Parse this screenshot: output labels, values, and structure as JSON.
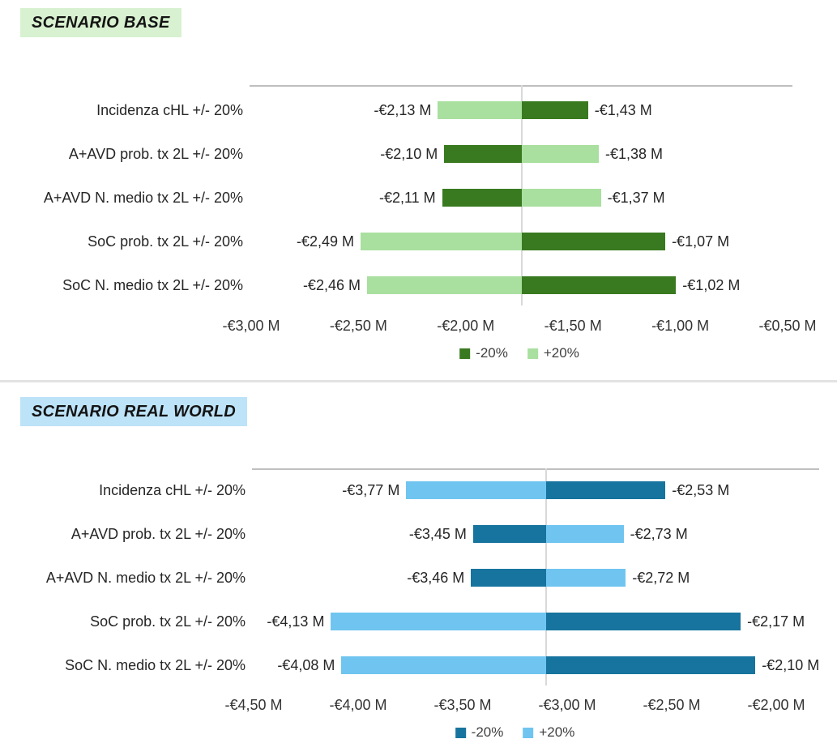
{
  "divider_color": "#E3E3E3",
  "plot_border_color": "#BFBFBF",
  "baseline_line_color": "#D9D9D9",
  "chart_data": [
    {
      "type": "bar",
      "orientation": "horizontal-tornado",
      "title": "SCENARIO BASE",
      "title_bg": "#D8F1D0",
      "baseline": -1.74,
      "xlim": [
        -3.0,
        -0.5
      ],
      "axis": {
        "min": -3.0,
        "max": -0.5,
        "tick_labels": [
          "-€3,00 M",
          "-€2,50 M",
          "-€2,00 M",
          "-€1,50 M",
          "-€1,00 M",
          "-€0,50 M"
        ]
      },
      "series_colors": {
        "minus20": "#397A20",
        "plus20": "#A9DF9F"
      },
      "legend": [
        {
          "key": "minus20",
          "label": "-20%"
        },
        {
          "key": "plus20",
          "label": "+20%"
        }
      ],
      "categories": [
        "Incidenza cHL +/- 20%",
        "A+AVD prob. tx 2L +/- 20%",
        "A+AVD N. medio tx 2L +/- 20%",
        "SoC prob.  tx 2L +/- 20%",
        "SoC N. medio tx 2L +/- 20%"
      ],
      "rows": [
        {
          "category": "Incidenza cHL +/- 20%",
          "minus20": {
            "value": -1.43,
            "label": "-€1,43 M"
          },
          "plus20": {
            "value": -2.13,
            "label": "-€2,13 M"
          }
        },
        {
          "category": "A+AVD prob. tx 2L +/- 20%",
          "minus20": {
            "value": -2.1,
            "label": "-€2,10 M"
          },
          "plus20": {
            "value": -1.38,
            "label": "-€1,38 M"
          }
        },
        {
          "category": "A+AVD N. medio tx 2L +/- 20%",
          "minus20": {
            "value": -2.11,
            "label": "-€2,11 M"
          },
          "plus20": {
            "value": -1.37,
            "label": "-€1,37 M"
          }
        },
        {
          "category": "SoC prob.  tx 2L +/- 20%",
          "minus20": {
            "value": -1.07,
            "label": "-€1,07 M"
          },
          "plus20": {
            "value": -2.49,
            "label": "-€2,49 M"
          }
        },
        {
          "category": "SoC N. medio tx 2L +/- 20%",
          "minus20": {
            "value": -1.02,
            "label": "-€1,02 M"
          },
          "plus20": {
            "value": -2.46,
            "label": "-€2,46 M"
          }
        }
      ]
    },
    {
      "type": "bar",
      "orientation": "horizontal-tornado",
      "title": "SCENARIO REAL WORLD",
      "title_bg": "#BDE3F8",
      "baseline": -3.1,
      "xlim": [
        -4.5,
        -2.0
      ],
      "axis": {
        "min": -4.5,
        "max": -2.0,
        "tick_labels": [
          "-€4,50 M",
          "-€4,00 M",
          "-€3,50 M",
          "-€3,00 M",
          "-€2,50 M",
          "-€2,00 M"
        ]
      },
      "series_colors": {
        "minus20": "#17749E",
        "plus20": "#6FC5F0"
      },
      "legend": [
        {
          "key": "minus20",
          "label": "-20%"
        },
        {
          "key": "plus20",
          "label": "+20%"
        }
      ],
      "categories": [
        "Incidenza cHL +/- 20%",
        "A+AVD prob. tx 2L +/- 20%",
        "A+AVD N. medio tx 2L +/- 20%",
        "SoC prob.  tx 2L +/- 20%",
        "SoC N. medio tx 2L +/- 20%"
      ],
      "rows": [
        {
          "category": "Incidenza cHL +/- 20%",
          "minus20": {
            "value": -2.53,
            "label": "-€2,53 M"
          },
          "plus20": {
            "value": -3.77,
            "label": "-€3,77 M"
          }
        },
        {
          "category": "A+AVD prob. tx 2L +/- 20%",
          "minus20": {
            "value": -3.45,
            "label": "-€3,45 M"
          },
          "plus20": {
            "value": -2.73,
            "label": "-€2,73 M"
          }
        },
        {
          "category": "A+AVD N. medio tx 2L +/- 20%",
          "minus20": {
            "value": -3.46,
            "label": "-€3,46 M"
          },
          "plus20": {
            "value": -2.72,
            "label": "-€2,72 M"
          }
        },
        {
          "category": "SoC prob.  tx 2L +/- 20%",
          "minus20": {
            "value": -2.17,
            "label": "-€2,17 M"
          },
          "plus20": {
            "value": -4.13,
            "label": "-€4,13 M"
          }
        },
        {
          "category": "SoC N. medio tx 2L +/- 20%",
          "minus20": {
            "value": -2.1,
            "label": "-€2,10 M"
          },
          "plus20": {
            "value": -4.08,
            "label": "-€4,08 M"
          }
        }
      ]
    }
  ]
}
